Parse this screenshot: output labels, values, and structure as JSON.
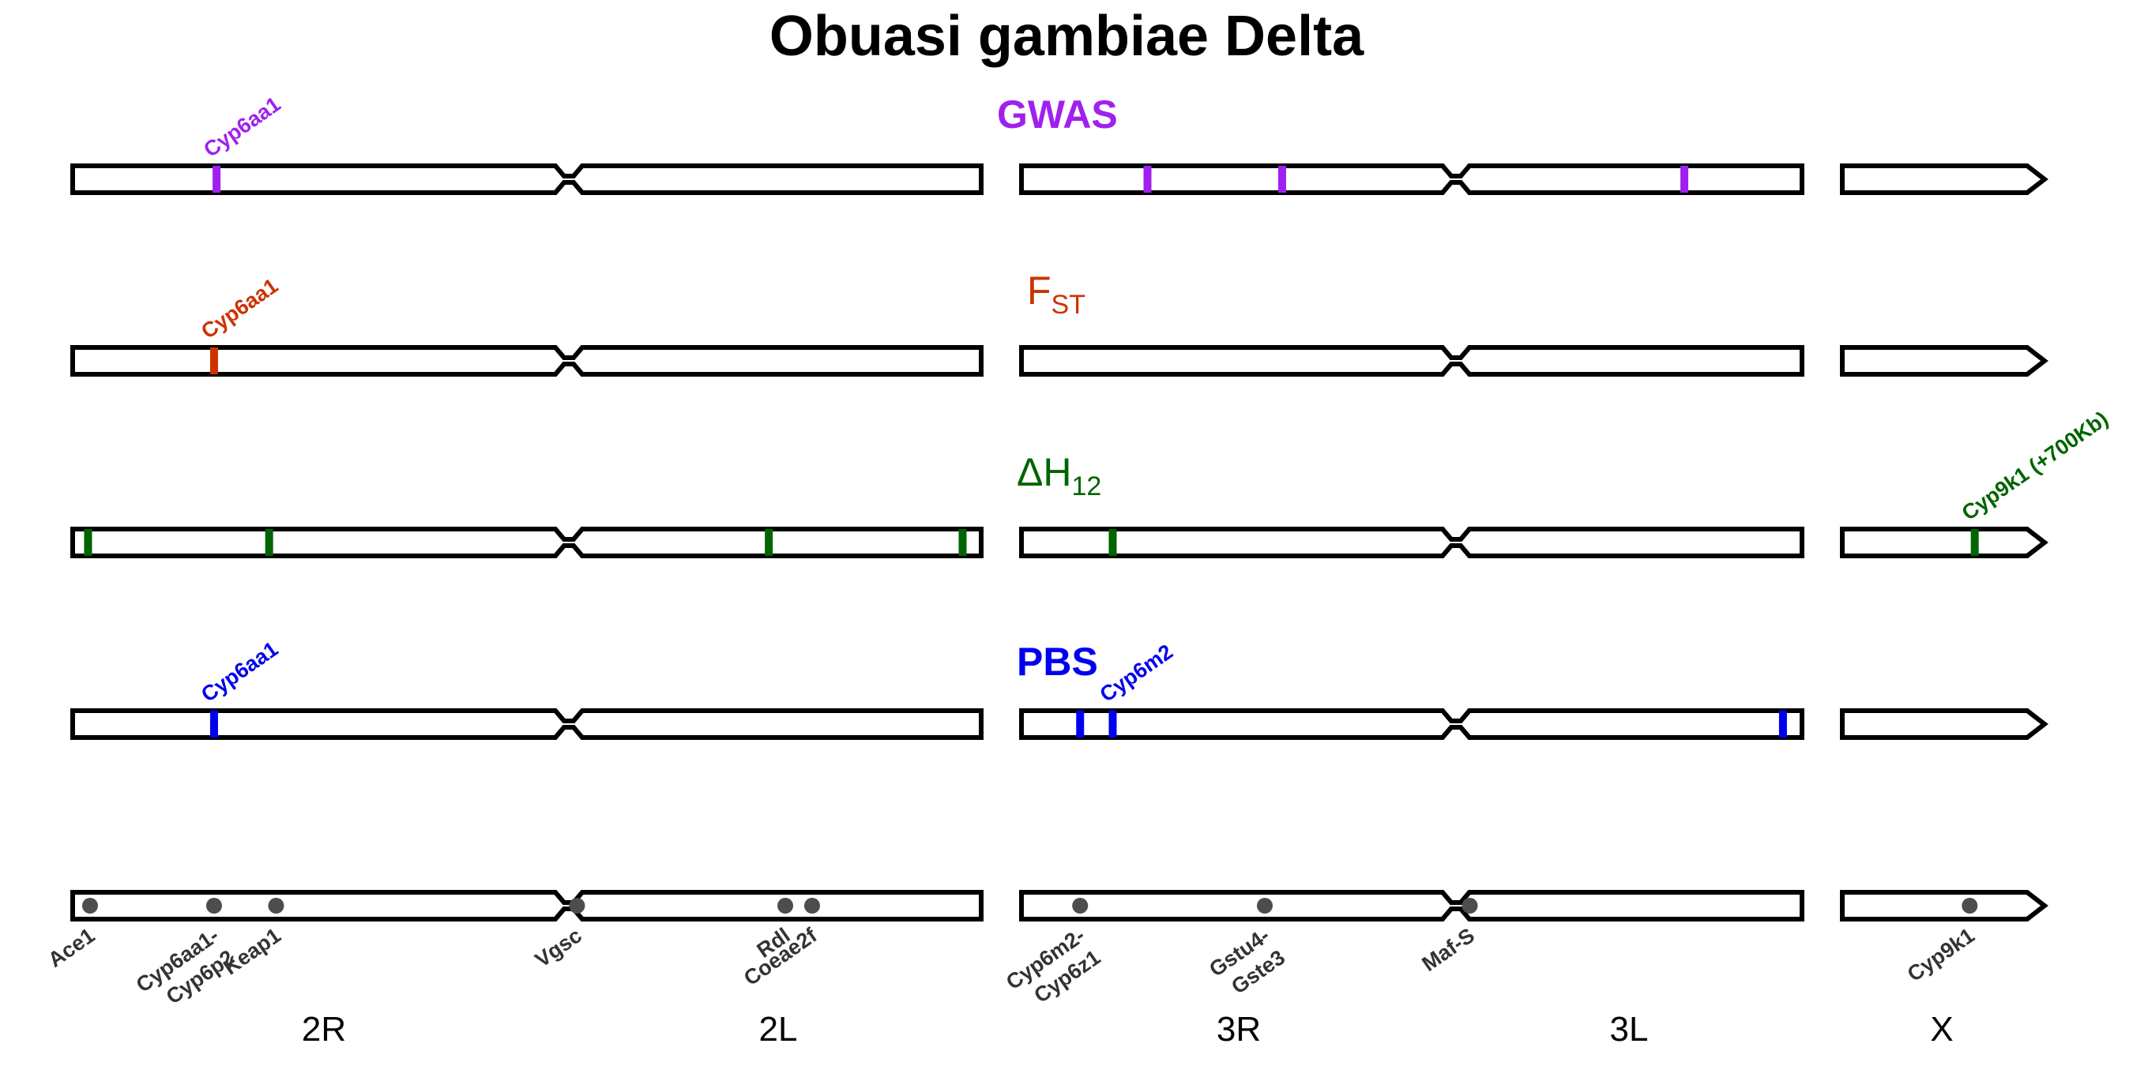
{
  "title": "Obuasi gambiae Delta",
  "tracks": [
    {
      "id": "gwas",
      "title_main": "GWAS",
      "title_sub": "",
      "bold": true,
      "color": "#a020f0",
      "hits": [
        {
          "arm": "2R",
          "pos": 0.29,
          "label": "Cyp6aa1"
        },
        {
          "arm": "3R",
          "pos": 0.29
        },
        {
          "arm": "3R",
          "pos": 0.6
        },
        {
          "arm": "3L",
          "pos": 0.66
        }
      ]
    },
    {
      "id": "fst",
      "title_main": "F",
      "title_sub": "ST",
      "bold": false,
      "color": "#cc3300",
      "hits": [
        {
          "arm": "2R",
          "pos": 0.285,
          "label": "Cyp6aa1"
        }
      ]
    },
    {
      "id": "h12",
      "title_main": "ΔH",
      "title_sub": "12",
      "bold": false,
      "color": "#006400",
      "hits": [
        {
          "arm": "2R",
          "pos": 0.031
        },
        {
          "arm": "2R",
          "pos": 0.396
        },
        {
          "arm": "2L",
          "pos": 0.485
        },
        {
          "arm": "2L",
          "pos": 0.955
        },
        {
          "arm": "3R",
          "pos": 0.21
        },
        {
          "arm": "X",
          "pos": 0.655,
          "label": "Cyp9k1 (+700Kb)"
        }
      ]
    },
    {
      "id": "pbs",
      "title_main": "PBS",
      "title_sub": "",
      "bold": true,
      "color": "#0000ee",
      "hits": [
        {
          "arm": "2R",
          "pos": 0.285,
          "label": "Cyp6aa1"
        },
        {
          "arm": "3R",
          "pos": 0.135
        },
        {
          "arm": "3R",
          "pos": 0.21,
          "label": "Cyp6m2"
        },
        {
          "arm": "3L",
          "pos": 0.945
        }
      ]
    }
  ],
  "markers": [
    {
      "arm": "2R",
      "pos": 0.035,
      "label": [
        "Ace1"
      ]
    },
    {
      "arm": "2R",
      "pos": 0.285,
      "label": [
        "Cyp6aa1-",
        "Cyp6p2"
      ]
    },
    {
      "arm": "2R",
      "pos": 0.41,
      "label": [
        "Keap1"
      ]
    },
    {
      "arm": "2L",
      "pos": 0.02,
      "label": [
        "Vgsc"
      ]
    },
    {
      "arm": "2L",
      "pos": 0.525,
      "label": [
        "Rdl"
      ]
    },
    {
      "arm": "2L",
      "pos": 0.59,
      "label": [
        "Coeae2f"
      ]
    },
    {
      "arm": "3R",
      "pos": 0.135,
      "label": [
        "Cyp6m2-",
        "Cyp6z1"
      ]
    },
    {
      "arm": "3R",
      "pos": 0.56,
      "label": [
        "Gstu4-",
        "Gste3"
      ]
    },
    {
      "arm": "3L",
      "pos": 0.04,
      "label": [
        "Maf-S"
      ]
    },
    {
      "arm": "X",
      "pos": 0.63,
      "label": [
        "Cyp9k1"
      ]
    }
  ],
  "chromosome_labels": [
    "2R",
    "2L",
    "3R",
    "3L",
    "X"
  ],
  "marker_color": "#4d4d4d"
}
